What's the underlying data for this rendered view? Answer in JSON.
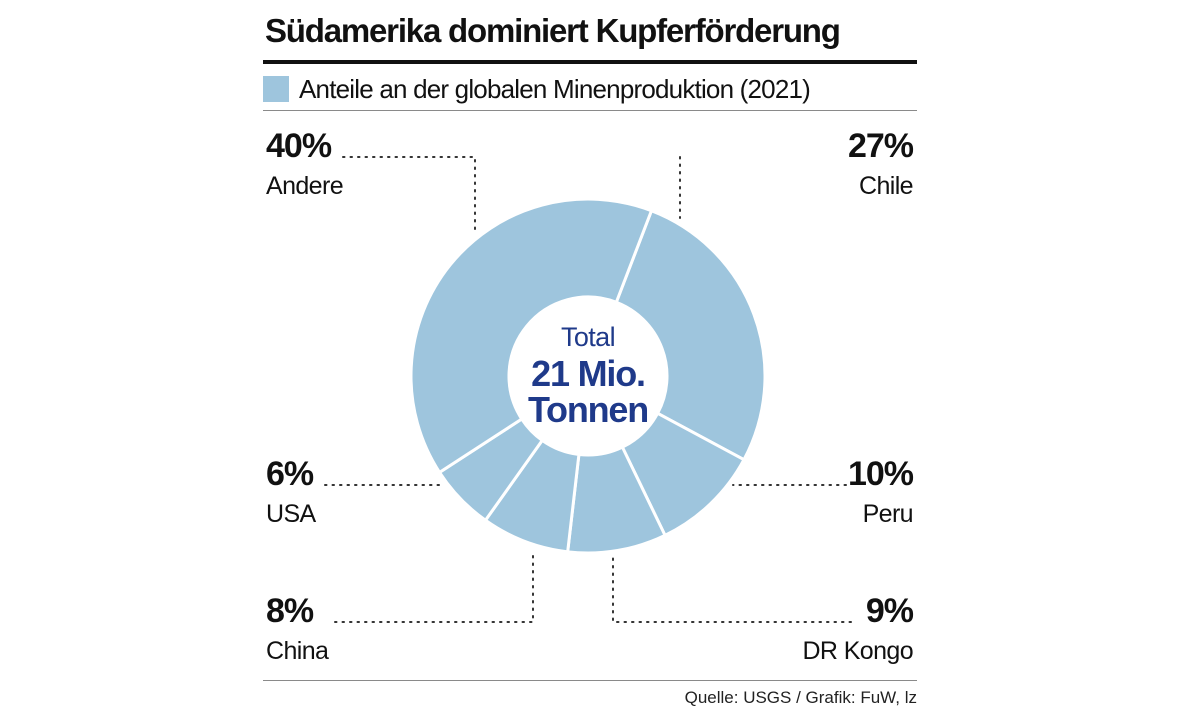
{
  "colors": {
    "slice": "#9ec5dd",
    "separator": "#ffffff",
    "center_text": "#1f3a8a"
  },
  "chart_data": {
    "type": "pie",
    "title": "Südamerika dominiert Kupferförderung",
    "subtitle": "Anteile an der globalen Minenproduktion (2021)",
    "unit": "%",
    "center": {
      "top": "Total",
      "value": "21 Mio.",
      "unit": "Tonnen"
    },
    "slices": [
      {
        "label": "Chile",
        "value": 27,
        "value_label": "27%"
      },
      {
        "label": "Peru",
        "value": 10,
        "value_label": "10%"
      },
      {
        "label": "DR Kongo",
        "value": 9,
        "value_label": "9%"
      },
      {
        "label": "China",
        "value": 8,
        "value_label": "8%"
      },
      {
        "label": "USA",
        "value": 6,
        "value_label": "6%"
      },
      {
        "label": "Andere",
        "value": 40,
        "value_label": "40%"
      }
    ],
    "source": "Quelle: USGS / Grafik: FuW, lz"
  }
}
